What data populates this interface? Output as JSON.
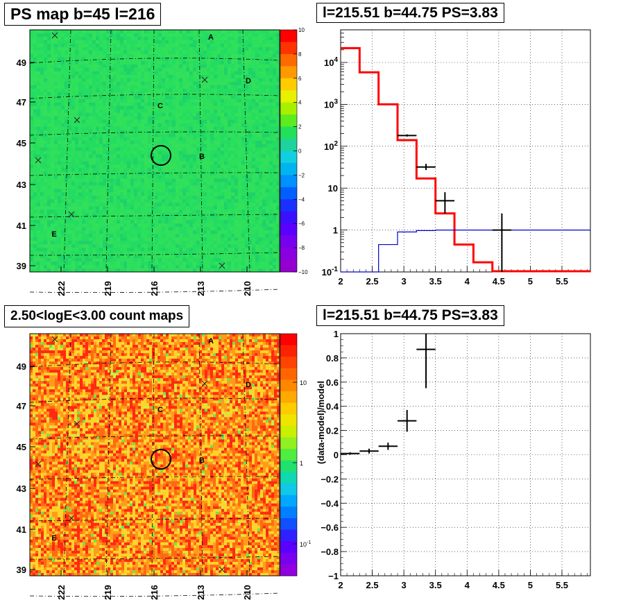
{
  "panels": {
    "top_left": {
      "title": "PS map b=45 l=216"
    },
    "top_right": {
      "title": "l=215.51 b=44.75 PS=3.83"
    },
    "bottom_left": {
      "title": "2.50<logE<3.00 count maps"
    },
    "bottom_right": {
      "title": "l=215.51 b=44.75 PS=3.83"
    }
  },
  "colors": {
    "map_green": "#22e05a",
    "data_black": "#000000",
    "model_red": "#ff0000",
    "model_blue": "#0000cc",
    "grid": "#000000"
  },
  "chart_data": [
    {
      "id": "ps_map",
      "type": "heatmap",
      "title": "PS map b=45 l=216",
      "x_ticks": [
        "222",
        "219",
        "216",
        "213",
        "210"
      ],
      "y_ticks": [
        "49",
        "47",
        "45",
        "43",
        "41",
        "39"
      ],
      "source_labels": [
        "A",
        "B",
        "C",
        "D",
        "E"
      ],
      "colorbar_ticks": [
        "10",
        "8",
        "6",
        "4",
        "2",
        "0",
        "−2",
        "−4",
        "−6",
        "−8",
        "−10"
      ],
      "colorbar_range": [
        -10,
        10
      ],
      "grid": true
    },
    {
      "id": "spectrum",
      "type": "line",
      "title": "l=215.51 b=44.75 PS=3.83",
      "x_ticks": [
        "2",
        "2.5",
        "3",
        "3.5",
        "4",
        "4.5",
        "5",
        "5.5"
      ],
      "y_ticks": [
        "10^-1",
        "1",
        "10",
        "10^2",
        "10^3",
        "10^4"
      ],
      "xlim": [
        2,
        5.95
      ],
      "ylim": [
        0.1,
        60000
      ],
      "yscale": "log",
      "grid": true,
      "series": [
        {
          "style": "step",
          "color": "red",
          "edges": [
            2,
            2.3,
            2.6,
            2.9,
            3.2,
            3.5,
            3.8,
            4.1,
            4.4
          ],
          "values": [
            22000,
            5800,
            1000,
            140,
            17,
            2.5,
            0.45,
            0.17,
            0.09
          ]
        },
        {
          "style": "step",
          "color": "blue",
          "edges": [
            2,
            2.3,
            2.6,
            2.9,
            3.2,
            3.5,
            5.95
          ],
          "values": [
            0.03,
            0.1,
            0.45,
            0.9,
            0.97,
            1.0
          ]
        },
        {
          "style": "errorbars",
          "color": "black",
          "points": [
            {
              "x": 3.05,
              "y": 180,
              "xerr": 0.15,
              "ylo": 170,
              "yhi": 192
            },
            {
              "x": 3.35,
              "y": 32,
              "xerr": 0.15,
              "ylo": 27,
              "yhi": 38
            },
            {
              "x": 3.65,
              "y": 5,
              "xerr": 0.15,
              "ylo": 2.5,
              "yhi": 8
            },
            {
              "x": 4.55,
              "y": 1,
              "xerr": 0.15,
              "ylo": 0.1,
              "yhi": 2.5
            }
          ]
        }
      ]
    },
    {
      "id": "count_map",
      "type": "heatmap",
      "title": "2.50<logE<3.00 count maps",
      "x_ticks": [
        "222",
        "219",
        "216",
        "213",
        "210"
      ],
      "y_ticks": [
        "49",
        "47",
        "45",
        "43",
        "41",
        "39"
      ],
      "source_labels": [
        "A",
        "B",
        "C",
        "D",
        "E"
      ],
      "colorbar_ticks": [
        "10",
        "1",
        "10^-1"
      ],
      "colorbar_scale": "log",
      "grid": true
    },
    {
      "id": "residuals",
      "type": "scatter",
      "title": "l=215.51 b=44.75 PS=3.83",
      "ylabel": "(data-model)/model",
      "x_ticks": [
        "2",
        "2.5",
        "3",
        "3.5",
        "4",
        "4.5",
        "5",
        "5.5"
      ],
      "y_ticks": [
        "1",
        "0.8",
        "0.6",
        "0.4",
        "0.2",
        "0",
        "−0.2",
        "−0.4",
        "−0.6",
        "−0.8",
        "−1"
      ],
      "xlim": [
        2,
        5.95
      ],
      "ylim": [
        -1,
        1
      ],
      "grid": true,
      "series": [
        {
          "style": "errorbars",
          "color": "black",
          "points": [
            {
              "x": 2.15,
              "y": 0.01,
              "xerr": 0.15,
              "ylo": 0.0,
              "yhi": 0.02
            },
            {
              "x": 2.45,
              "y": 0.03,
              "xerr": 0.15,
              "ylo": 0.01,
              "yhi": 0.05
            },
            {
              "x": 2.75,
              "y": 0.07,
              "xerr": 0.15,
              "ylo": 0.04,
              "yhi": 0.1
            },
            {
              "x": 3.05,
              "y": 0.28,
              "xerr": 0.15,
              "ylo": 0.19,
              "yhi": 0.37
            },
            {
              "x": 3.35,
              "y": 0.87,
              "xerr": 0.15,
              "ylo": 0.55,
              "yhi": 1.0
            }
          ]
        }
      ]
    }
  ]
}
